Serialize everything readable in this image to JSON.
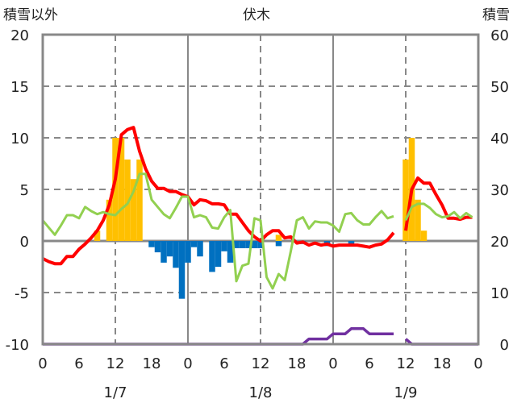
{
  "chart_data": {
    "type": "bar+line",
    "title": "伏木",
    "ylabel_left": "積雪以外",
    "ylabel_right": "積雪",
    "ylim_left": [
      -10,
      20
    ],
    "ylim_right": [
      0,
      60
    ],
    "yticks_left": [
      20,
      15,
      10,
      5,
      0,
      -5,
      -10
    ],
    "yticks_right": [
      60,
      50,
      40,
      30,
      20,
      10,
      0
    ],
    "xlim_hours": [
      0,
      72
    ],
    "xtick_labels": [
      "0",
      "6",
      "12",
      "18",
      "0",
      "6",
      "12",
      "18",
      "0",
      "6",
      "12",
      "18",
      "0"
    ],
    "date_labels": [
      {
        "hour": 12,
        "label": "1/7"
      },
      {
        "hour": 36,
        "label": "1/8"
      },
      {
        "hour": 60,
        "label": "1/9"
      }
    ],
    "grid": true,
    "series": [
      {
        "name": "precip_positive",
        "type": "bar",
        "axis": "left",
        "color": "#FFC000",
        "values": {
          "9": 1,
          "11": 4,
          "12": 10,
          "13": 10,
          "14": 7.9,
          "15": 6,
          "16": 7.9,
          "39": 0.6,
          "60": 7.9,
          "61": 10,
          "62": 4,
          "63": 1
        }
      },
      {
        "name": "precip_negative",
        "type": "bar",
        "axis": "left",
        "color": "#0070C0",
        "values": {
          "18": -0.6,
          "19": -1.1,
          "20": -2.1,
          "21": -1.5,
          "22": -2.6,
          "23": -5.6,
          "24": -2.1,
          "25": -0.6,
          "26": -1.5,
          "28": -3.0,
          "29": -2.5,
          "30": -1.0,
          "31": -2.1,
          "32": -0.7,
          "33": -0.7,
          "34": -0.7,
          "35": -0.7,
          "36": -0.7,
          "39": -0.5,
          "43": -0.3,
          "47": -0.5,
          "51": -0.3
        }
      },
      {
        "name": "temperature",
        "type": "line",
        "axis": "left",
        "color": "#FF0000",
        "values": [
          -1.7,
          -2.0,
          -2.2,
          -2.2,
          -1.5,
          -1.5,
          -0.8,
          -0.3,
          0.3,
          1.0,
          2.0,
          3.5,
          6.0,
          10.3,
          10.8,
          11.0,
          8.7,
          7.0,
          5.8,
          5.1,
          5.1,
          4.8,
          4.8,
          4.5,
          4.3,
          3.5,
          4.0,
          3.9,
          3.6,
          3.6,
          3.5,
          2.6,
          2.6,
          1.8,
          1.0,
          0.4,
          0.0,
          0.6,
          1.0,
          1.0,
          0.3,
          0.4,
          -0.2,
          -0.1,
          -0.4,
          -0.2,
          -0.4,
          -0.3,
          -0.5,
          -0.4,
          -0.4,
          -0.4,
          -0.4,
          -0.5,
          -0.6,
          -0.4,
          -0.3,
          0.1,
          0.8,
          null,
          1.0,
          5.0,
          6.1,
          5.6,
          5.6,
          4.5,
          3.5,
          2.2,
          2.2,
          2.1,
          2.3,
          2.3
        ]
      },
      {
        "name": "other",
        "type": "line",
        "axis": "left",
        "color": "#92D050",
        "values": [
          2.0,
          1.3,
          0.6,
          1.5,
          2.5,
          2.5,
          2.2,
          3.3,
          2.9,
          2.6,
          2.8,
          2.6,
          2.5,
          3.1,
          3.6,
          4.8,
          6.5,
          6.5,
          4.0,
          3.3,
          2.6,
          2.2,
          3.2,
          4.3,
          4.3,
          2.3,
          2.5,
          2.3,
          1.3,
          1.2,
          2.3,
          3.0,
          -3.9,
          -2.4,
          -2.2,
          2.2,
          2.0,
          -3.5,
          -4.6,
          -3.2,
          -3.8,
          -1.0,
          2.0,
          2.3,
          1.2,
          1.9,
          1.8,
          1.8,
          1.5,
          0.9,
          2.6,
          2.7,
          2.0,
          1.6,
          1.6,
          2.3,
          2.9,
          2.2,
          2.4,
          null,
          2.0,
          3.3,
          3.6,
          3.6,
          3.2,
          2.6,
          2.3,
          2.4,
          2.8,
          2.2,
          2.7,
          2.3
        ]
      },
      {
        "name": "snow_depth",
        "type": "line",
        "axis": "right",
        "color": "#7030A0",
        "values": [
          0,
          0,
          0,
          0,
          0,
          0,
          0,
          0,
          0,
          0,
          0,
          0,
          0,
          0,
          0,
          0,
          0,
          0,
          0,
          0,
          0,
          0,
          0,
          0,
          0,
          0,
          0,
          0,
          0,
          0,
          0,
          0,
          0,
          0,
          0,
          0,
          0,
          0,
          0,
          0,
          0,
          0,
          0,
          0,
          1,
          1,
          1,
          1,
          2,
          2,
          2,
          3,
          3,
          3,
          2,
          2,
          2,
          2,
          2,
          null,
          1,
          0,
          0,
          0,
          0,
          0,
          0,
          0,
          0,
          0,
          0,
          0,
          0
        ]
      }
    ]
  }
}
